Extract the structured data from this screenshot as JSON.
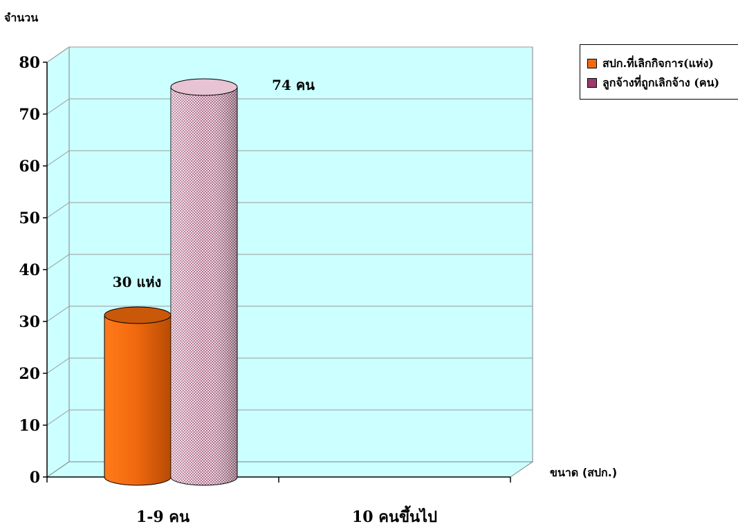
{
  "chart_data": {
    "type": "bar",
    "ylabel": "จำนวน",
    "xlabel": "ขนาด (สปก.)",
    "categories": [
      "1-9 คน",
      "10 คนขึ้นไป"
    ],
    "series": [
      {
        "name": "สปก.ที่เลิกกิจการ(แห่ง)",
        "values": [
          30,
          0
        ],
        "color": "#f26a0f"
      },
      {
        "name": "ลูกจ้างที่ถูกเลิกจ้าง (คน)",
        "values": [
          74,
          0
        ],
        "color": "#9b3b6b"
      }
    ],
    "data_labels": [
      "30 แห่ง",
      "74 คน"
    ],
    "ylim": [
      0,
      80
    ],
    "yticks": [
      0,
      10,
      20,
      30,
      40,
      50,
      60,
      70,
      80
    ],
    "grid": true,
    "legend_position": "top-right",
    "plot_background": "#ccffff"
  }
}
